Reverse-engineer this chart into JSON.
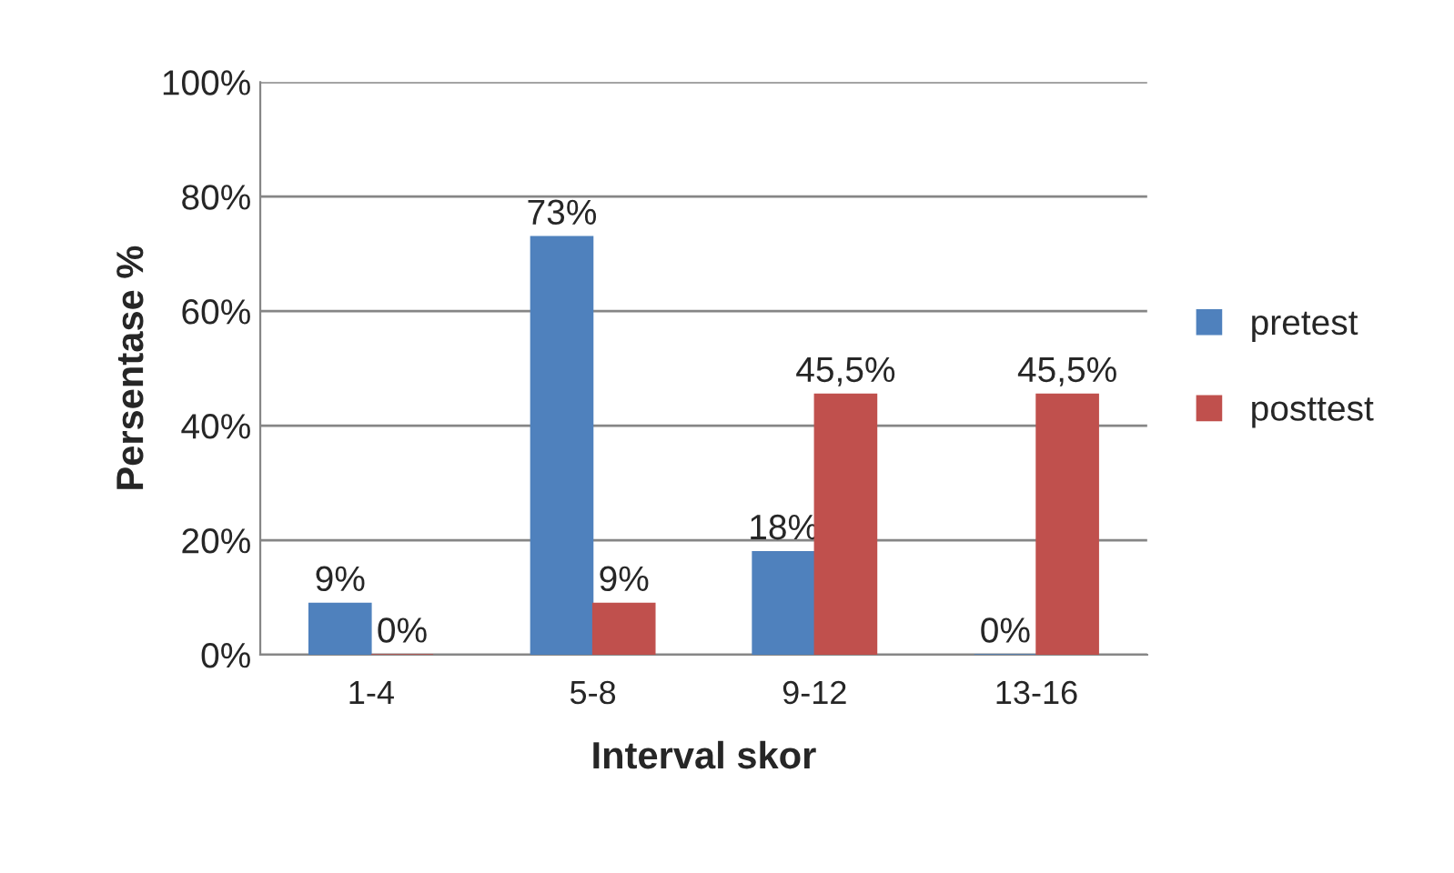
{
  "chart_data": {
    "type": "bar",
    "xlabel": "Interval skor",
    "ylabel": "Persentase %",
    "categories": [
      "1-4",
      "5-8",
      "9-12",
      "13-16"
    ],
    "series": [
      {
        "name": "pretest",
        "color": "#4f81bd",
        "values": [
          9,
          73,
          18,
          0
        ],
        "value_labels": [
          "9%",
          "73%",
          "18%",
          "0%"
        ]
      },
      {
        "name": "posttest",
        "color": "#c0504d",
        "values": [
          0,
          9,
          45.5,
          45.5
        ],
        "value_labels": [
          "0%",
          "9%",
          "45,5%",
          "45,5%"
        ]
      }
    ],
    "ylim": [
      0,
      100
    ],
    "yticks": [
      {
        "value": 0,
        "label": "0%"
      },
      {
        "value": 20,
        "label": "20%"
      },
      {
        "value": 40,
        "label": "40%"
      },
      {
        "value": 60,
        "label": "60%"
      },
      {
        "value": 80,
        "label": "80%"
      },
      {
        "value": 100,
        "label": "100%"
      }
    ],
    "grid": "y",
    "legend": "right"
  }
}
